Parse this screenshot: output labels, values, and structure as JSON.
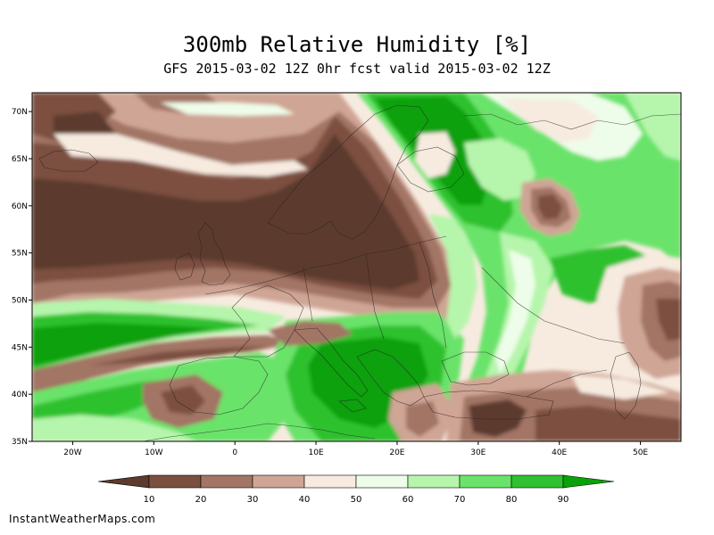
{
  "title": "300mb Relative Humidity [%]",
  "subtitle": "GFS 2015-03-02 12Z 0hr fcst valid 2015-03-02 12Z",
  "credit": "InstantWeatherMaps.com",
  "map": {
    "lat_range": [
      35,
      72
    ],
    "lon_range": [
      -25,
      55
    ],
    "lat_ticks": [
      "35N",
      "40N",
      "45N",
      "50N",
      "55N",
      "60N",
      "65N",
      "70N"
    ],
    "lon_ticks": [
      "20W",
      "10W",
      "0",
      "10E",
      "20E",
      "30E",
      "40E",
      "50E"
    ]
  },
  "colorbar": {
    "labels": [
      "10",
      "20",
      "30",
      "40",
      "50",
      "60",
      "70",
      "80",
      "90"
    ],
    "colors": [
      "#5c3a2e",
      "#7b5040",
      "#a27565",
      "#cfa595",
      "#f7ebe0",
      "#eefde9",
      "#b6f5ac",
      "#6be36a",
      "#2fc12f",
      "#0aa10a"
    ]
  }
}
